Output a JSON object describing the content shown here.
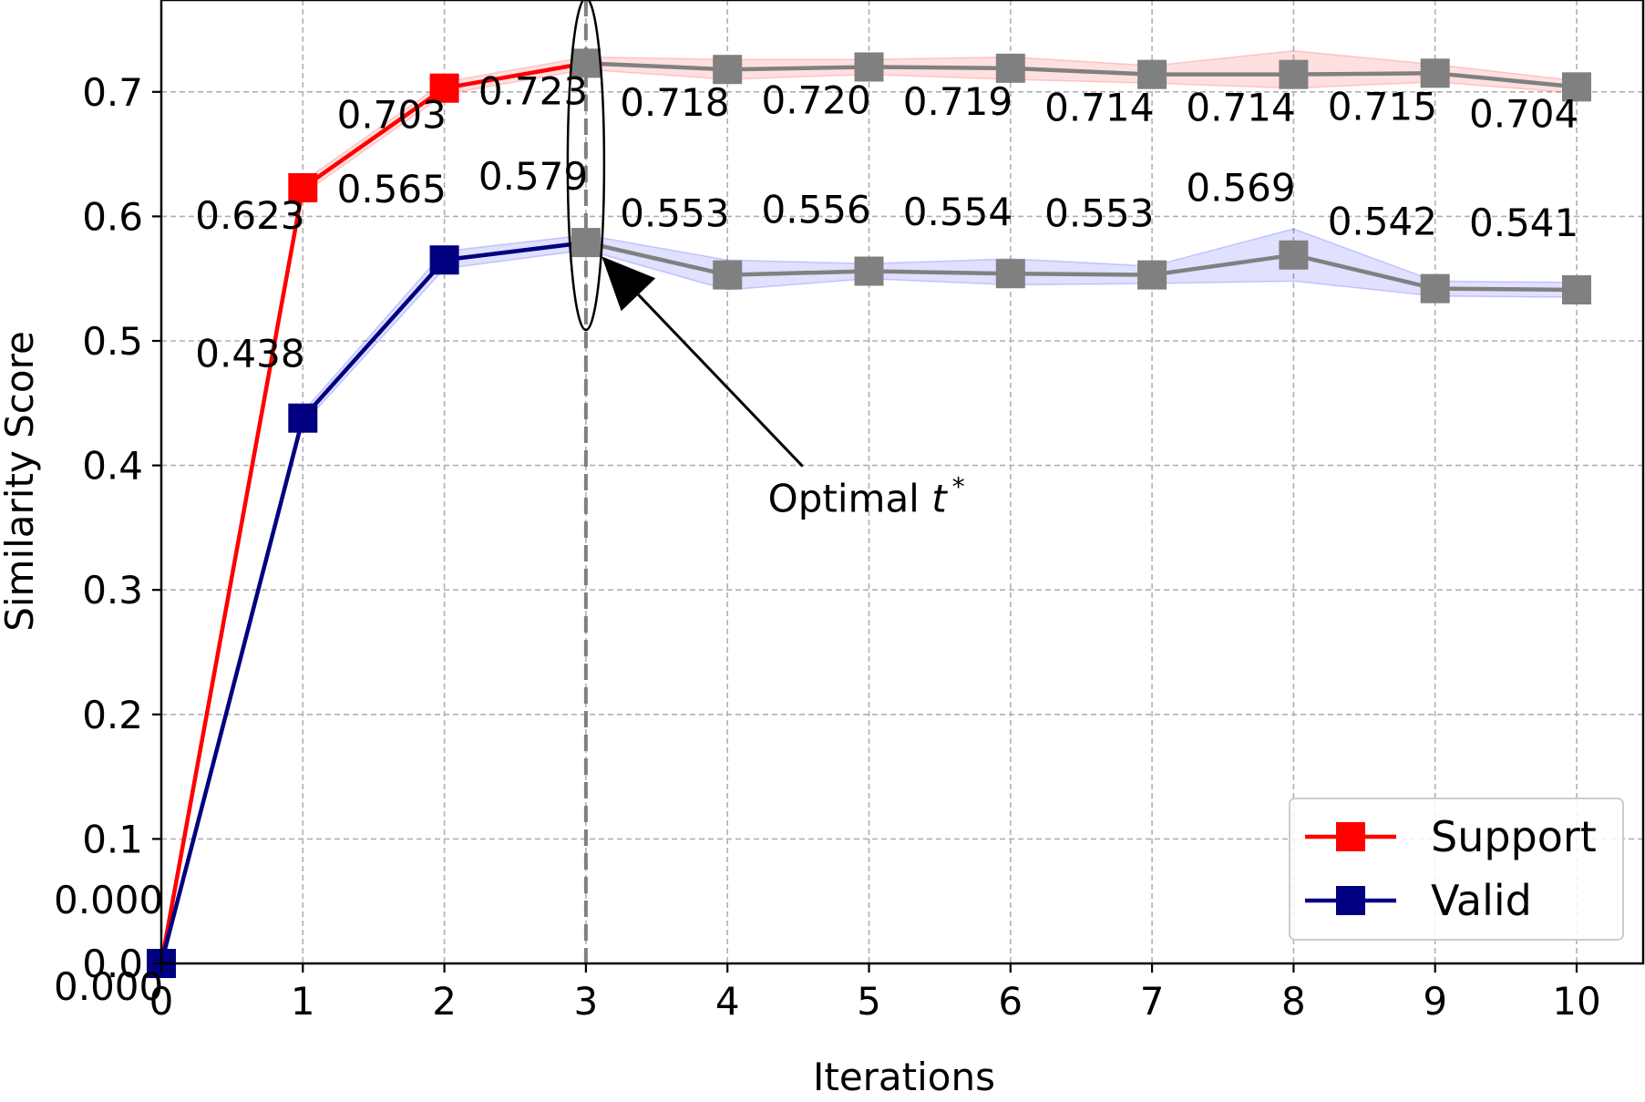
{
  "chart_data": {
    "type": "line",
    "title": "",
    "xlabel": "Iterations",
    "ylabel": "Similarity Score",
    "xlim": [
      0,
      10.5
    ],
    "ylim": [
      0.0,
      0.76
    ],
    "x_ticks": [
      0,
      1,
      2,
      3,
      4,
      5,
      6,
      7,
      8,
      9,
      10
    ],
    "y_ticks": [
      0.0,
      0.1,
      0.2,
      0.3,
      0.4,
      0.5,
      0.6,
      0.7
    ],
    "y_tick_labels": [
      "0.0",
      "0.1",
      "0.2",
      "0.3",
      "0.4",
      "0.5",
      "0.6",
      "0.7"
    ],
    "grid": true,
    "legend_position": "lower-right",
    "x": [
      0,
      1,
      2,
      3,
      4,
      5,
      6,
      7,
      8,
      9,
      10
    ],
    "series": [
      {
        "name": "Support",
        "color": "#ff0000",
        "after_optimal_color": "#808080",
        "values": [
          0.0,
          0.623,
          0.703,
          0.723,
          0.718,
          0.72,
          0.719,
          0.714,
          0.714,
          0.715,
          0.704
        ],
        "labels": [
          "0.000",
          "0.623",
          "0.703",
          "0.723",
          "0.718",
          "0.720",
          "0.719",
          "0.714",
          "0.714",
          "0.715",
          "0.704"
        ],
        "band_lower": [
          0.0,
          0.618,
          0.698,
          0.718,
          0.71,
          0.714,
          0.71,
          0.707,
          0.703,
          0.708,
          0.699
        ],
        "band_upper": [
          0.0,
          0.628,
          0.708,
          0.728,
          0.726,
          0.726,
          0.728,
          0.721,
          0.733,
          0.722,
          0.709
        ],
        "band_color": "#ff0000"
      },
      {
        "name": "Valid",
        "color": "#000080",
        "after_optimal_color": "#808080",
        "values": [
          0.0,
          0.438,
          0.565,
          0.579,
          0.553,
          0.556,
          0.554,
          0.553,
          0.569,
          0.542,
          0.541
        ],
        "labels": [
          "0.000",
          "0.438",
          "0.565",
          "0.579",
          "0.553",
          "0.556",
          "0.554",
          "0.553",
          "0.569",
          "0.542",
          "0.541"
        ],
        "band_lower": [
          0.0,
          0.433,
          0.558,
          0.573,
          0.541,
          0.55,
          0.545,
          0.546,
          0.548,
          0.536,
          0.535
        ],
        "band_upper": [
          0.0,
          0.443,
          0.572,
          0.585,
          0.565,
          0.562,
          0.566,
          0.56,
          0.59,
          0.548,
          0.547
        ],
        "band_color": "#0000ff"
      }
    ],
    "optimal_iteration": 3,
    "annotation": {
      "text": "Optimal ",
      "symbol": "t",
      "superscript": "*",
      "text_at": [
        4.75,
        0.37
      ],
      "arrow_to": [
        3.08,
        0.57
      ]
    }
  }
}
